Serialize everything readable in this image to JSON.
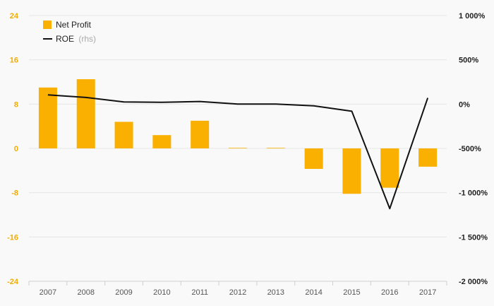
{
  "chart_data": {
    "type": "bar+line",
    "categories": [
      "2007",
      "2008",
      "2009",
      "2010",
      "2011",
      "2012",
      "2013",
      "2014",
      "2015",
      "2016",
      "2017"
    ],
    "series": [
      {
        "name": "Net Profit",
        "type": "bar",
        "axis": "left",
        "color": "#f9b000",
        "values": [
          11,
          12.5,
          4.8,
          2.4,
          5.0,
          0.1,
          0.1,
          -3.7,
          -8.2,
          -7.1,
          -3.3
        ]
      },
      {
        "name": "ROE",
        "name_suffix": "(rhs)",
        "type": "line",
        "axis": "right",
        "color": "#111111",
        "values": [
          105,
          75,
          25,
          20,
          30,
          0,
          0,
          -20,
          -80,
          -1180,
          70
        ]
      }
    ],
    "left_axis": {
      "ylim": [
        -24,
        24
      ],
      "ticks": [
        24,
        16,
        8,
        0,
        -8,
        -16,
        -24
      ],
      "tick_labels": [
        "24",
        "16",
        "8",
        "0",
        "-8",
        "-16",
        "-24"
      ],
      "color": "#f0ad00"
    },
    "right_axis": {
      "ylim": [
        -2000,
        1000
      ],
      "ticks": [
        1000,
        500,
        0,
        -500,
        -1000,
        -1500,
        -2000
      ],
      "tick_labels": [
        "1 000%",
        "500%",
        "0%",
        "-500%",
        "-1 000%",
        "-1 500%",
        "-2 000%"
      ],
      "color": "#222222"
    },
    "legend": {
      "position": "top-left"
    },
    "grid": true
  }
}
